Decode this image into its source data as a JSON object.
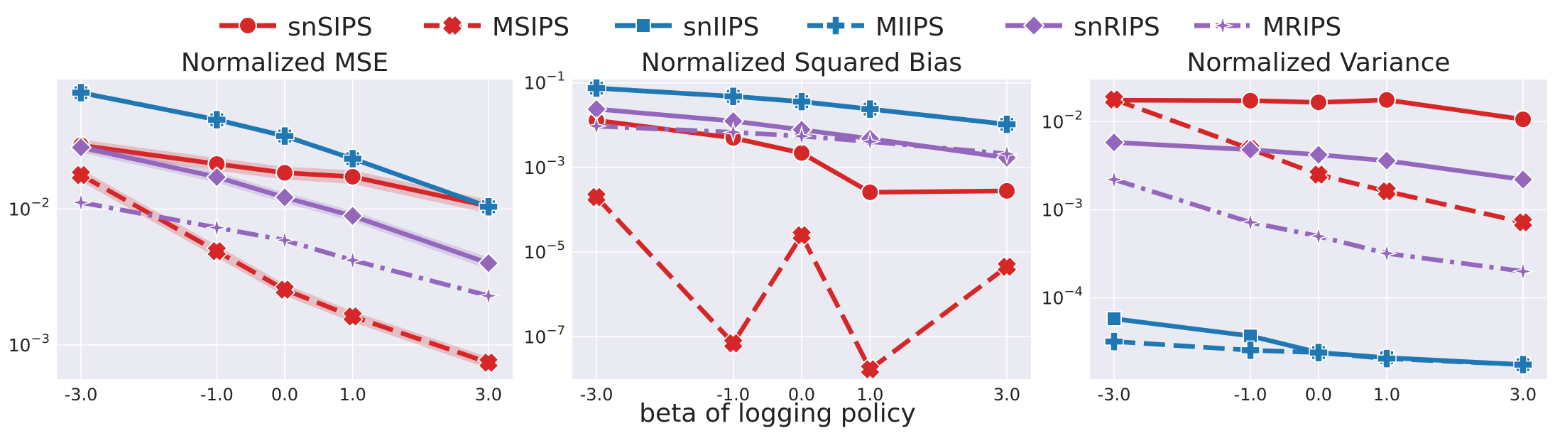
{
  "legend": [
    {
      "label": "snSIPS",
      "color": "#d62728",
      "dash": "solid",
      "marker": "circle",
      "icon": "circle-marker-icon"
    },
    {
      "label": "MSIPS",
      "color": "#d62728",
      "dash": "dashed",
      "marker": "x",
      "icon": "x-marker-icon"
    },
    {
      "label": "snIIPS",
      "color": "#1f77b4",
      "dash": "solid",
      "marker": "square",
      "icon": "square-marker-icon"
    },
    {
      "label": "MIIPS",
      "color": "#1f77b4",
      "dash": "dashed",
      "marker": "plus",
      "icon": "plus-marker-icon"
    },
    {
      "label": "snRIPS",
      "color": "#9467bd",
      "dash": "solid",
      "marker": "diamond",
      "icon": "diamond-marker-icon"
    },
    {
      "label": "MRIPS",
      "color": "#9467bd",
      "dash": "dashdot",
      "marker": "star",
      "icon": "star-marker-icon"
    }
  ],
  "xlabel": "beta of logging policy",
  "chart_data": [
    {
      "type": "line",
      "title": "Normalized MSE",
      "x": [
        -3.0,
        -1.0,
        0.0,
        1.0,
        3.0
      ],
      "x_tick_labels": [
        "-3.0",
        "-1.0",
        "0.0",
        "1.0",
        "3.0"
      ],
      "y_scale": "log",
      "ylim": [
        0.00056,
        0.09
      ],
      "y_ticks": [
        {
          "value": 0.01,
          "base": "10",
          "exp": "−2"
        },
        {
          "value": 0.001,
          "base": "10",
          "exp": "−3"
        }
      ],
      "grid": true,
      "series": [
        {
          "name": "snSIPS",
          "values": [
            0.0295,
            0.0215,
            0.0185,
            0.0173,
            0.0105
          ],
          "band": [
            0.003,
            0.0023,
            0.002,
            0.002,
            0.0012
          ]
        },
        {
          "name": "MSIPS",
          "values": [
            0.0178,
            0.0049,
            0.00255,
            0.00162,
            0.00074
          ],
          "band": [
            0.0018,
            0.0005,
            0.00025,
            0.00015,
            7e-05
          ]
        },
        {
          "name": "snIIPS",
          "values": [
            0.072,
            0.0455,
            0.0345,
            0.0235,
            0.0104
          ],
          "band": null
        },
        {
          "name": "MIIPS",
          "values": [
            0.072,
            0.0455,
            0.0345,
            0.0235,
            0.0104
          ],
          "band": null
        },
        {
          "name": "snRIPS",
          "values": [
            0.0285,
            0.0172,
            0.0122,
            0.0089,
            0.004
          ],
          "band": [
            0.0025,
            0.0015,
            0.0011,
            0.0008,
            0.0004
          ]
        },
        {
          "name": "MRIPS",
          "values": [
            0.0112,
            0.0073,
            0.0059,
            0.0042,
            0.0023
          ],
          "band": null
        }
      ]
    },
    {
      "type": "line",
      "title": "Normalized Squared Bias",
      "x": [
        -3.0,
        -1.0,
        0.0,
        1.0,
        3.0
      ],
      "x_tick_labels": [
        "-3.0",
        "-1.0",
        "0.0",
        "1.0",
        "3.0"
      ],
      "y_scale": "log",
      "ylim": [
        1e-08,
        0.12
      ],
      "y_ticks": [
        {
          "value": 0.1,
          "base": "10",
          "exp": "−1"
        },
        {
          "value": 0.001,
          "base": "10",
          "exp": "−3"
        },
        {
          "value": 1e-05,
          "base": "10",
          "exp": "−5"
        },
        {
          "value": 1e-07,
          "base": "10",
          "exp": "−7"
        }
      ],
      "grid": true,
      "series": [
        {
          "name": "snSIPS",
          "values": [
            0.013,
            0.005,
            0.0022,
            0.00026,
            0.00028
          ],
          "band": null
        },
        {
          "name": "MSIPS",
          "values": [
            0.0002,
            7e-08,
            2.5e-05,
            1.7e-08,
            4.5e-06
          ],
          "band": null
        },
        {
          "name": "snIIPS",
          "values": [
            0.075,
            0.048,
            0.036,
            0.024,
            0.0105
          ],
          "band": null
        },
        {
          "name": "MIIPS",
          "values": [
            0.075,
            0.048,
            0.036,
            0.024,
            0.0105
          ],
          "band": null
        },
        {
          "name": "snRIPS",
          "values": [
            0.024,
            0.0125,
            0.0078,
            0.0048,
            0.0017
          ],
          "band": null
        },
        {
          "name": "MRIPS",
          "values": [
            0.0095,
            0.0068,
            0.0055,
            0.0041,
            0.0021
          ],
          "band": null
        }
      ]
    },
    {
      "type": "line",
      "title": "Normalized Variance",
      "x": [
        -3.0,
        -1.0,
        0.0,
        1.0,
        3.0
      ],
      "x_tick_labels": [
        "-3.0",
        "-1.0",
        "0.0",
        "1.0",
        "3.0"
      ],
      "y_scale": "log",
      "ylim": [
        1.2e-05,
        0.03
      ],
      "y_ticks": [
        {
          "value": 0.01,
          "base": "10",
          "exp": "−2"
        },
        {
          "value": 0.001,
          "base": "10",
          "exp": "−3"
        },
        {
          "value": 0.0001,
          "base": "10",
          "exp": "−4"
        }
      ],
      "grid": true,
      "series": [
        {
          "name": "snSIPS",
          "values": [
            0.0175,
            0.0173,
            0.0165,
            0.0176,
            0.0106
          ],
          "band": null
        },
        {
          "name": "MSIPS",
          "values": [
            0.0178,
            0.0049,
            0.0025,
            0.00162,
            0.00072
          ],
          "band": null
        },
        {
          "name": "snIIPS",
          "values": [
            5.8e-05,
            3.7e-05,
            2.4e-05,
            2.1e-05,
            1.75e-05
          ],
          "band": null
        },
        {
          "name": "MIIPS",
          "values": [
            3.2e-05,
            2.55e-05,
            2.4e-05,
            2.05e-05,
            1.75e-05
          ],
          "band": null
        },
        {
          "name": "snRIPS",
          "values": [
            0.0058,
            0.0048,
            0.0042,
            0.0036,
            0.0022
          ],
          "band": null
        },
        {
          "name": "MRIPS",
          "values": [
            0.0022,
            0.00072,
            0.0005,
            0.00032,
            0.0002
          ],
          "band": null
        }
      ]
    }
  ]
}
